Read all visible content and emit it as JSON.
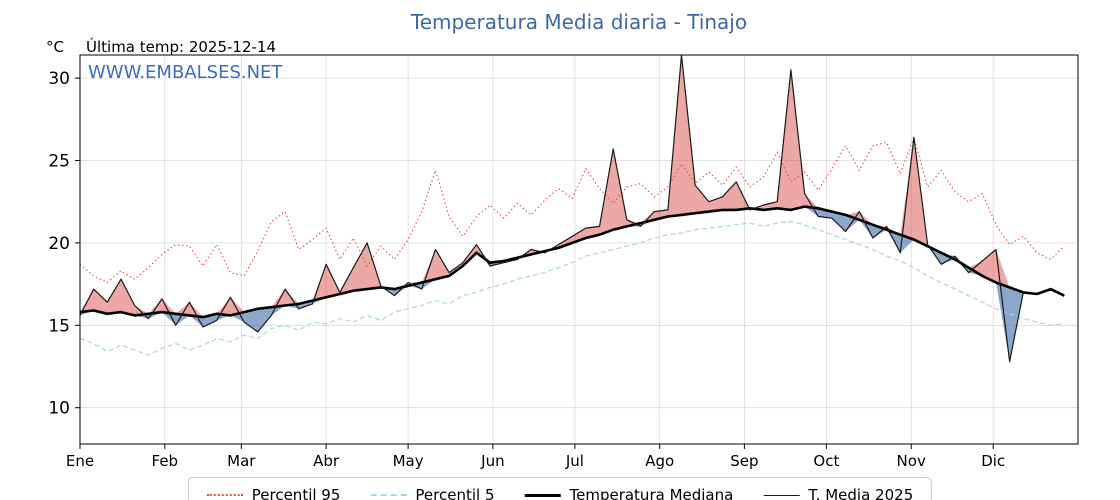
{
  "header": {
    "title": "Temperatura Media diaria - Tinajo",
    "unit": "°C",
    "last_temp": "Última temp: 2025-12-14",
    "watermark": "WWW.EMBALSES.NET"
  },
  "colors": {
    "title": "#3a68a8",
    "watermark": "#3b6cc4",
    "grid": "#d9d9d9",
    "spine": "#000000",
    "percentil95": "#d9534f",
    "percentil5": "#a8d7e6",
    "median": "#000000",
    "t2025": "#1a1a1a",
    "fill_above": "rgba(214,60,53,0.45)",
    "fill_below": "rgba(62,110,170,0.60)"
  },
  "chart_data": {
    "type": "line",
    "title": "Temperatura Media diaria - Tinajo",
    "xlabel": "",
    "ylabel": "°C",
    "ylim": [
      7.8,
      31.4
    ],
    "xlim_days": [
      0,
      365
    ],
    "grid": true,
    "legend_position": "bottom-outside",
    "y_ticks": [
      10,
      15,
      20,
      25,
      30
    ],
    "x_tick_days": [
      0,
      31,
      59,
      90,
      120,
      151,
      181,
      212,
      243,
      273,
      304,
      334
    ],
    "x_tick_labels": [
      "Ene",
      "Feb",
      "Mar",
      "Abr",
      "May",
      "Jun",
      "Jul",
      "Ago",
      "Sep",
      "Oct",
      "Nov",
      "Dic"
    ],
    "days": [
      0,
      5,
      10,
      15,
      20,
      25,
      30,
      35,
      40,
      45,
      50,
      55,
      60,
      65,
      70,
      75,
      80,
      85,
      90,
      95,
      100,
      105,
      110,
      115,
      120,
      125,
      130,
      135,
      140,
      145,
      150,
      155,
      160,
      165,
      170,
      175,
      180,
      185,
      190,
      195,
      200,
      205,
      210,
      215,
      220,
      225,
      230,
      235,
      240,
      245,
      250,
      255,
      260,
      265,
      270,
      275,
      280,
      285,
      290,
      295,
      300,
      305,
      310,
      315,
      320,
      325,
      330,
      335,
      340,
      345,
      350,
      355,
      360
    ],
    "series": [
      {
        "name": "Percentil 95",
        "style": "dotted",
        "color": "#d9534f",
        "values": [
          18.7,
          18.0,
          17.6,
          18.3,
          17.8,
          18.5,
          19.3,
          19.9,
          19.8,
          18.6,
          19.9,
          18.2,
          18.0,
          19.5,
          21.3,
          21.9,
          19.6,
          20.2,
          20.9,
          19.0,
          20.3,
          18.6,
          19.8,
          19.0,
          20.2,
          21.9,
          24.4,
          21.6,
          20.4,
          21.6,
          22.3,
          21.5,
          22.4,
          21.7,
          22.6,
          23.3,
          22.7,
          24.5,
          23.3,
          22.4,
          23.4,
          23.6,
          22.8,
          23.4,
          24.8,
          23.6,
          24.3,
          23.5,
          24.6,
          23.4,
          24.0,
          25.5,
          23.7,
          24.3,
          23.2,
          24.5,
          25.9,
          24.4,
          25.9,
          26.1,
          24.2,
          26.4,
          23.4,
          24.4,
          23.1,
          22.5,
          23.0,
          21.1,
          19.9,
          20.4,
          19.4,
          19.0,
          19.8
        ]
      },
      {
        "name": "Percentil 5",
        "style": "dashed",
        "color": "#a8d7e6",
        "values": [
          14.2,
          13.9,
          13.4,
          13.8,
          13.5,
          13.2,
          13.6,
          13.9,
          13.5,
          13.8,
          14.2,
          14.0,
          14.4,
          14.2,
          14.8,
          15.0,
          14.7,
          15.2,
          15.1,
          15.4,
          15.2,
          15.6,
          15.3,
          15.8,
          16.0,
          16.2,
          16.5,
          16.3,
          16.8,
          17.0,
          17.3,
          17.5,
          17.8,
          18.0,
          18.2,
          18.5,
          18.8,
          19.2,
          19.4,
          19.6,
          19.8,
          20.0,
          20.3,
          20.5,
          20.6,
          20.8,
          20.9,
          21.0,
          21.1,
          21.2,
          21.0,
          21.2,
          21.3,
          21.1,
          20.8,
          20.5,
          20.2,
          19.9,
          19.6,
          19.2,
          18.9,
          18.5,
          18.0,
          17.6,
          17.2,
          16.8,
          16.4,
          16.0,
          15.7,
          15.4,
          15.2,
          15.0,
          15.1
        ]
      },
      {
        "name": "Temperatura Mediana",
        "style": "solid-thick",
        "color": "#000000",
        "values": [
          15.8,
          15.9,
          15.7,
          15.8,
          15.6,
          15.7,
          15.8,
          15.7,
          15.6,
          15.5,
          15.7,
          15.6,
          15.8,
          16.0,
          16.1,
          16.2,
          16.3,
          16.5,
          16.7,
          16.9,
          17.1,
          17.2,
          17.3,
          17.2,
          17.4,
          17.6,
          17.8,
          18.0,
          18.6,
          19.4,
          18.8,
          18.9,
          19.1,
          19.3,
          19.5,
          19.7,
          20.0,
          20.3,
          20.5,
          20.8,
          21.0,
          21.2,
          21.4,
          21.6,
          21.7,
          21.8,
          21.9,
          22.0,
          22.0,
          22.1,
          22.0,
          22.1,
          22.0,
          22.2,
          22.1,
          21.9,
          21.7,
          21.4,
          21.1,
          20.8,
          20.5,
          20.2,
          19.8,
          19.4,
          19.0,
          18.5,
          18.0,
          17.6,
          17.3,
          17.0,
          16.9,
          17.2,
          16.8
        ]
      },
      {
        "name": "T. Media 2025",
        "style": "solid-thin",
        "color": "#1a1a1a",
        "values": [
          15.6,
          17.2,
          16.4,
          17.8,
          16.2,
          15.4,
          16.6,
          15.0,
          16.4,
          14.9,
          15.3,
          16.7,
          15.2,
          14.6,
          15.6,
          17.2,
          16.0,
          16.3,
          18.7,
          17.0,
          18.5,
          20.0,
          17.4,
          16.8,
          17.6,
          17.2,
          19.6,
          18.2,
          18.8,
          19.9,
          18.6,
          18.8,
          19.0,
          19.6,
          19.4,
          19.9,
          20.4,
          20.9,
          21.0,
          25.7,
          21.4,
          21.0,
          21.9,
          22.0,
          31.4,
          23.5,
          22.5,
          22.8,
          23.7,
          22.0,
          22.3,
          22.5,
          30.5,
          23.0,
          21.6,
          21.5,
          20.7,
          21.9,
          20.3,
          21.0,
          19.4,
          26.4,
          19.9,
          18.7,
          19.2,
          18.2,
          18.9,
          19.6,
          12.8,
          17.0,
          null,
          null,
          null
        ]
      }
    ],
    "fills": {
      "description": "area between T. Media 2025 and Temperatura Mediana; red where above, blue where below",
      "above_color": "rgba(214,60,53,0.45)",
      "below_color": "rgba(62,110,170,0.60)"
    },
    "legend": [
      "Percentil 95",
      "Percentil 5",
      "Temperatura Mediana",
      "T. Media 2025"
    ]
  }
}
